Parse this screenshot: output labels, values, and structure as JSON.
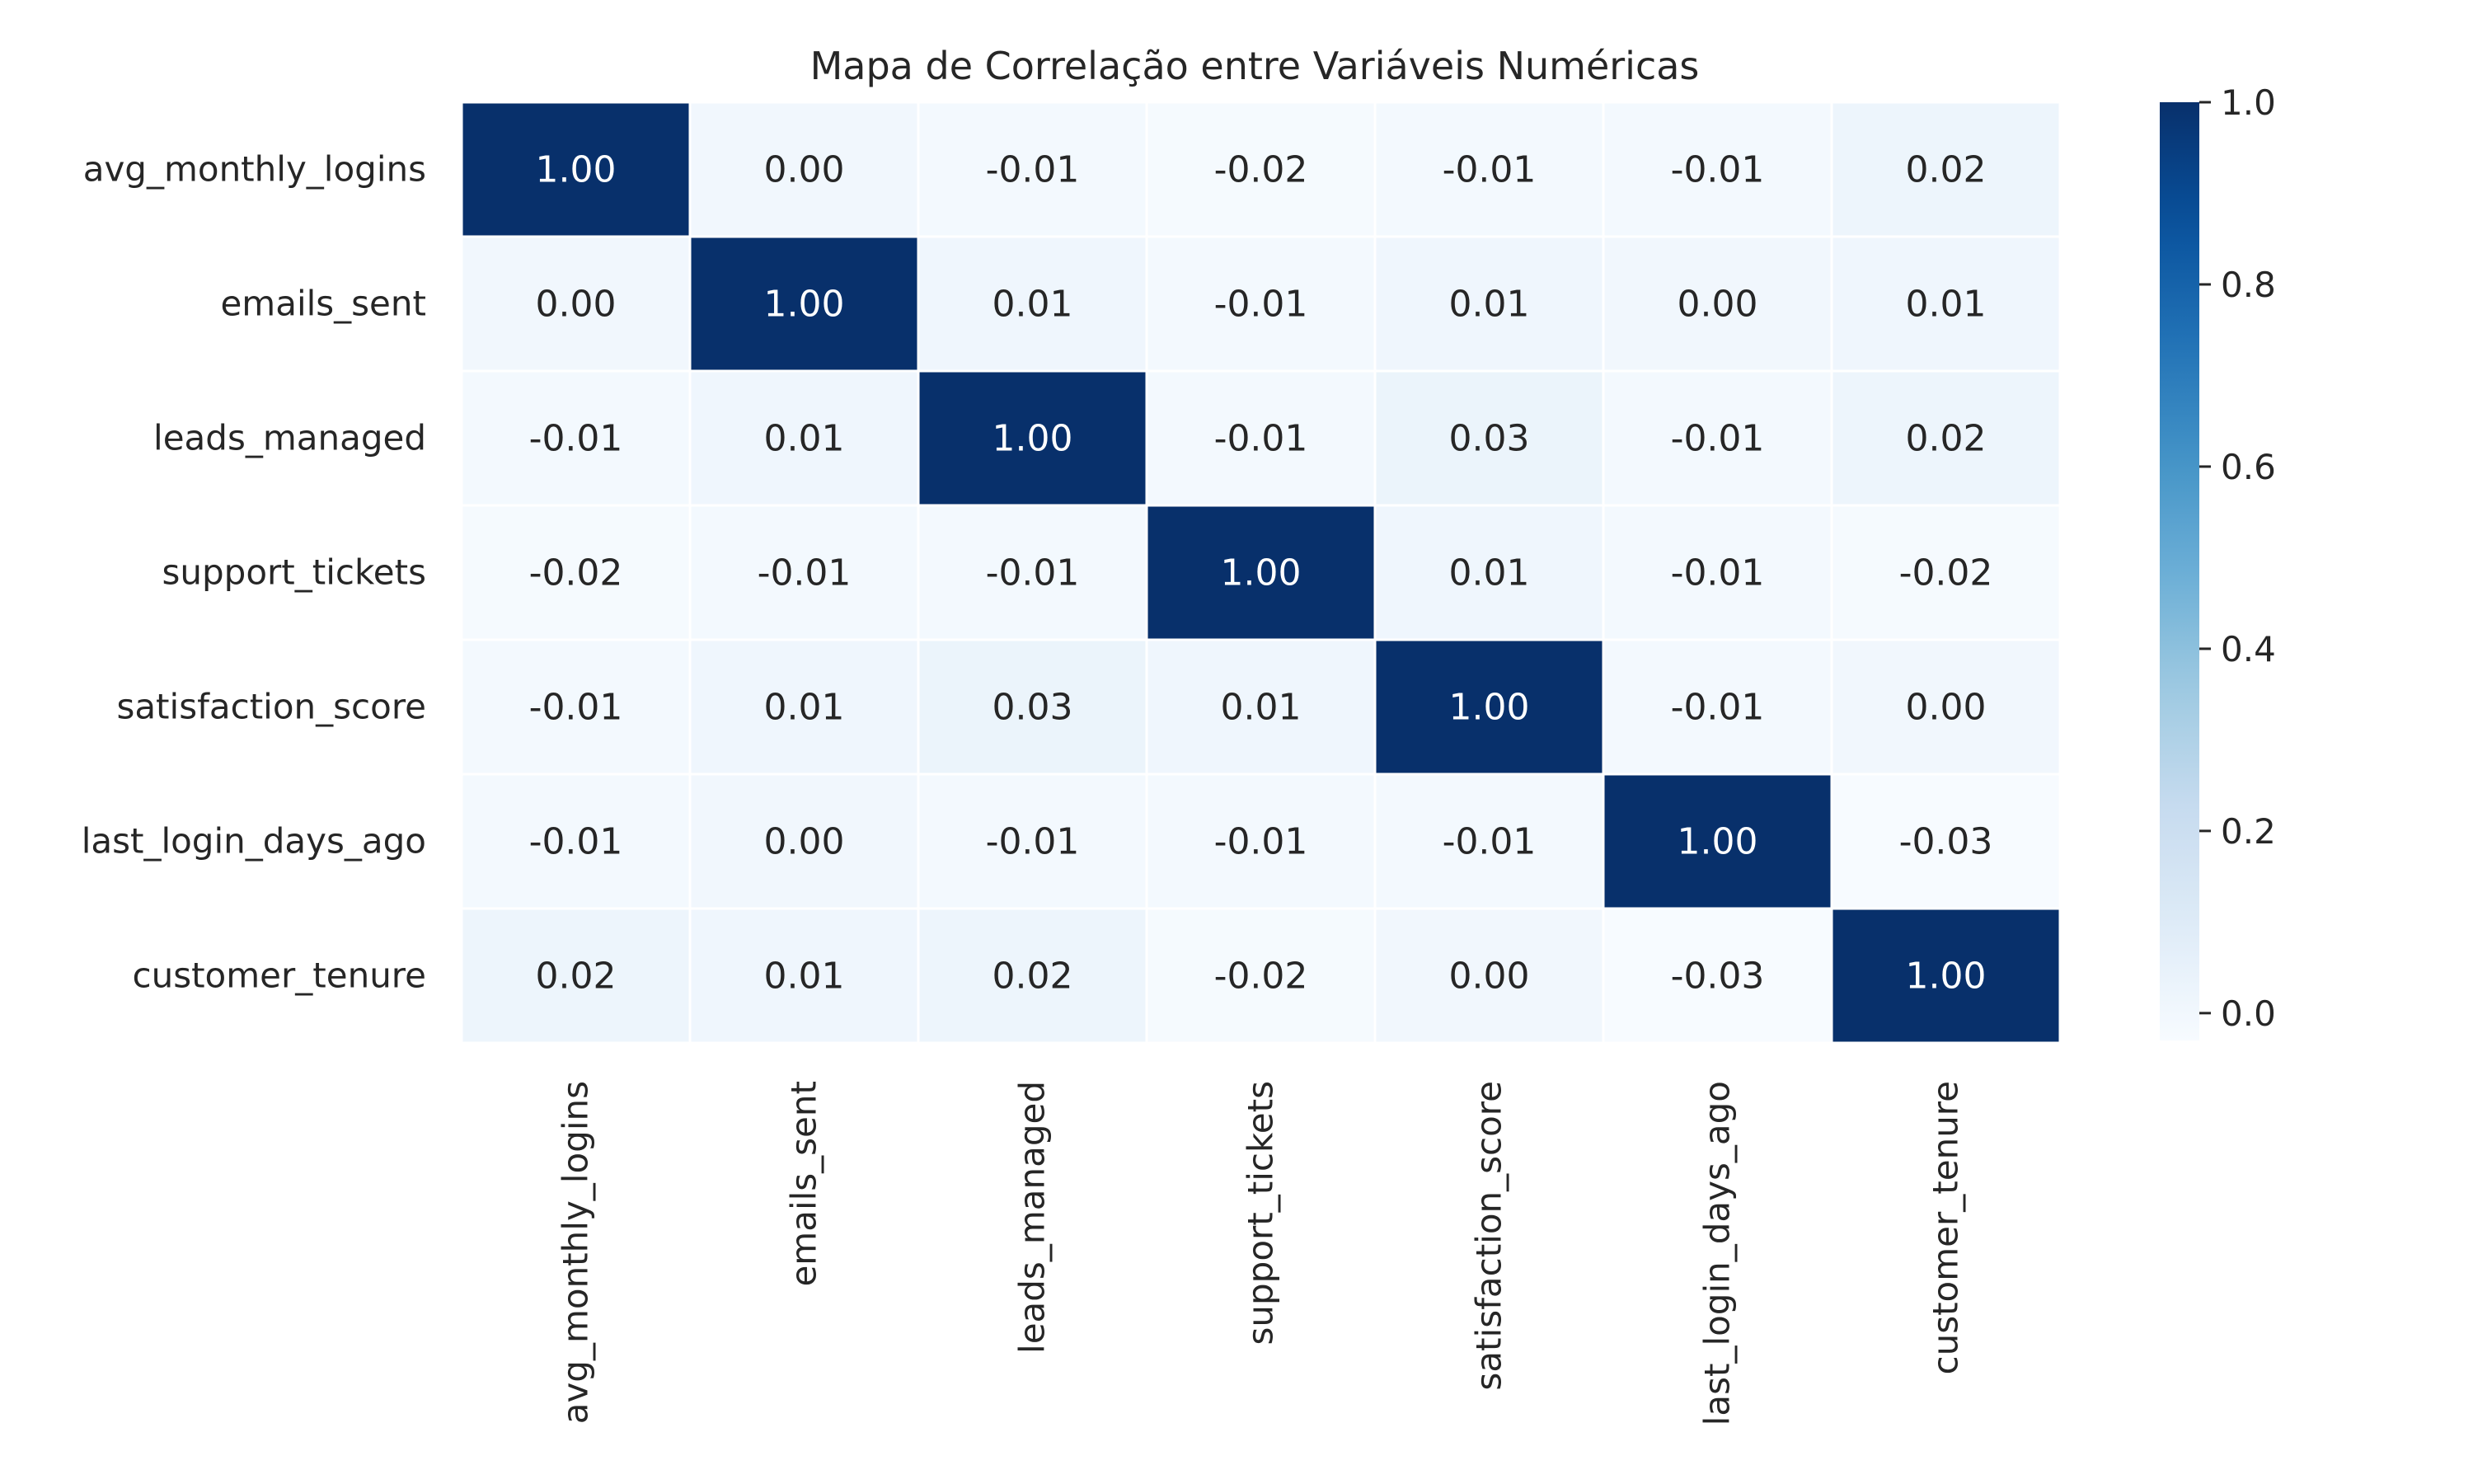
{
  "chart_data": {
    "type": "heatmap",
    "title": "Mapa de Correlação entre Variáveis Numéricas",
    "xlabel": "",
    "ylabel": "",
    "row_labels": [
      "avg_monthly_logins",
      "emails_sent",
      "leads_managed",
      "support_tickets",
      "satisfaction_score",
      "last_login_days_ago",
      "customer_tenure"
    ],
    "col_labels": [
      "avg_monthly_logins",
      "emails_sent",
      "leads_managed",
      "support_tickets",
      "satisfaction_score",
      "last_login_days_ago",
      "customer_tenure"
    ],
    "values": [
      [
        1.0,
        0.0,
        -0.01,
        -0.02,
        -0.01,
        -0.01,
        0.02
      ],
      [
        0.0,
        1.0,
        0.01,
        -0.01,
        0.01,
        0.0,
        0.01
      ],
      [
        -0.01,
        0.01,
        1.0,
        -0.01,
        0.03,
        -0.01,
        0.02
      ],
      [
        -0.02,
        -0.01,
        -0.01,
        1.0,
        0.01,
        -0.01,
        -0.02
      ],
      [
        -0.01,
        0.01,
        0.03,
        0.01,
        1.0,
        -0.01,
        0.0
      ],
      [
        -0.01,
        0.0,
        -0.01,
        -0.01,
        -0.01,
        1.0,
        -0.03
      ],
      [
        0.02,
        0.01,
        0.02,
        -0.02,
        0.0,
        -0.03,
        1.0
      ]
    ],
    "value_labels": [
      [
        "1.00",
        "0.00",
        "-0.01",
        "-0.02",
        "-0.01",
        "-0.01",
        "0.02"
      ],
      [
        "0.00",
        "1.00",
        "0.01",
        "-0.01",
        "0.01",
        "0.00",
        "0.01"
      ],
      [
        "-0.01",
        "0.01",
        "1.00",
        "-0.01",
        "0.03",
        "-0.01",
        "0.02"
      ],
      [
        "-0.02",
        "-0.01",
        "-0.01",
        "1.00",
        "0.01",
        "-0.01",
        "-0.02"
      ],
      [
        "-0.01",
        "0.01",
        "0.03",
        "0.01",
        "1.00",
        "-0.01",
        "0.00"
      ],
      [
        "-0.01",
        "0.00",
        "-0.01",
        "-0.01",
        "-0.01",
        "1.00",
        "-0.03"
      ],
      [
        "0.02",
        "0.01",
        "0.02",
        "-0.02",
        "0.00",
        "-0.03",
        "1.00"
      ]
    ],
    "colormap": "Blues",
    "colorbar": {
      "range": [
        -0.03,
        1.0
      ],
      "ticks": [
        0.0,
        0.2,
        0.4,
        0.6,
        0.8,
        1.0
      ],
      "tick_labels": [
        "0.0",
        "0.2",
        "0.4",
        "0.6",
        "0.8",
        "1.0"
      ]
    },
    "colors": {
      "text_dark": "#262626",
      "text_light": "#ffffff",
      "cell_border": "#ffffff"
    }
  }
}
